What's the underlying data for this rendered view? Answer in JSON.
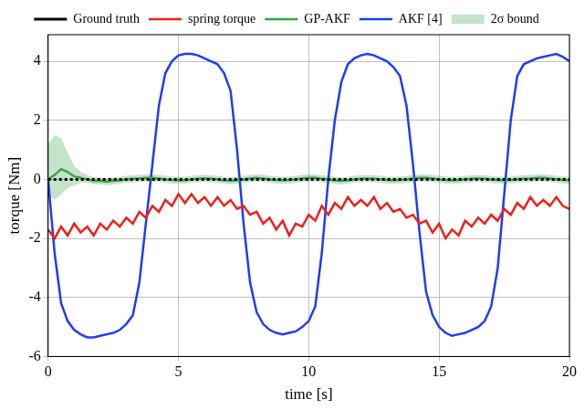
{
  "chart_data": {
    "type": "line",
    "x_label": "time [s]",
    "y_label": "torque [Nm]",
    "xlim": [
      0,
      20
    ],
    "xticks": [
      0,
      5,
      10,
      15,
      20
    ],
    "ylim": [
      -6,
      4.9
    ],
    "yticks": [
      -6,
      -4,
      -2,
      0,
      2,
      4
    ],
    "grid": true,
    "legend": "top",
    "x": [
      0,
      0.25,
      0.5,
      0.75,
      1,
      1.25,
      1.5,
      1.75,
      2,
      2.25,
      2.5,
      2.75,
      3,
      3.25,
      3.5,
      3.75,
      4,
      4.25,
      4.5,
      4.75,
      5,
      5.25,
      5.5,
      5.75,
      6,
      6.25,
      6.5,
      6.75,
      7,
      7.25,
      7.5,
      7.75,
      8,
      8.25,
      8.5,
      8.75,
      9,
      9.25,
      9.5,
      9.75,
      10,
      10.25,
      10.5,
      10.75,
      11,
      11.25,
      11.5,
      11.75,
      12,
      12.25,
      12.5,
      12.75,
      13,
      13.25,
      13.5,
      13.75,
      14,
      14.25,
      14.5,
      14.75,
      15,
      15.25,
      15.5,
      15.75,
      16,
      16.25,
      16.5,
      16.75,
      17,
      17.25,
      17.5,
      17.75,
      18,
      18.25,
      18.5,
      18.75,
      19,
      19.25,
      19.5,
      19.75,
      20
    ],
    "series": [
      {
        "name": "Ground truth",
        "color": "#000000",
        "line_style": "dotted",
        "values": [
          0,
          0,
          0,
          0,
          0,
          0,
          0,
          0,
          0,
          0,
          0,
          0,
          0,
          0,
          0,
          0,
          0,
          0,
          0,
          0,
          0,
          0,
          0,
          0,
          0,
          0,
          0,
          0,
          0,
          0,
          0,
          0,
          0,
          0,
          0,
          0,
          0,
          0,
          0,
          0,
          0,
          0,
          0,
          0,
          0,
          0,
          0,
          0,
          0,
          0,
          0,
          0,
          0,
          0,
          0,
          0,
          0,
          0,
          0,
          0,
          0,
          0,
          0,
          0,
          0,
          0,
          0,
          0,
          0,
          0,
          0,
          0,
          0,
          0,
          0,
          0,
          0,
          0,
          0,
          0,
          0
        ]
      },
      {
        "name": "spring torque",
        "color": "#e8231c",
        "line_style": "solid",
        "values": [
          -1.7,
          -2.0,
          -1.6,
          -1.9,
          -1.5,
          -1.8,
          -1.6,
          -1.9,
          -1.5,
          -1.7,
          -1.4,
          -1.6,
          -1.3,
          -1.5,
          -1.1,
          -1.3,
          -0.9,
          -1.1,
          -0.7,
          -0.9,
          -0.5,
          -0.8,
          -0.5,
          -0.8,
          -0.6,
          -0.9,
          -0.6,
          -0.9,
          -0.7,
          -1.0,
          -0.9,
          -1.2,
          -1.1,
          -1.5,
          -1.3,
          -1.7,
          -1.4,
          -1.9,
          -1.5,
          -1.6,
          -1.2,
          -1.4,
          -0.9,
          -1.2,
          -0.8,
          -1.0,
          -0.6,
          -0.9,
          -0.7,
          -0.9,
          -0.6,
          -1.0,
          -0.8,
          -1.1,
          -1.0,
          -1.3,
          -1.2,
          -1.5,
          -1.4,
          -1.8,
          -1.5,
          -2.0,
          -1.7,
          -1.9,
          -1.4,
          -1.6,
          -1.3,
          -1.5,
          -1.2,
          -1.4,
          -1.0,
          -1.2,
          -0.8,
          -1.0,
          -0.6,
          -0.9,
          -0.7,
          -0.9,
          -0.6,
          -0.9,
          -1.0
        ]
      },
      {
        "name": "GP-AKF",
        "color": "#3aa14a",
        "line_style": "solid",
        "values": [
          0,
          0.15,
          0.35,
          0.25,
          0.1,
          0.05,
          0,
          -0.05,
          -0.05,
          -0.08,
          -0.05,
          -0.03,
          0,
          0.02,
          0.03,
          0.05,
          0.05,
          0.03,
          0,
          -0.02,
          -0.03,
          -0.03,
          0,
          0.02,
          0.03,
          0.02,
          0,
          -0.03,
          -0.05,
          -0.03,
          0,
          0.03,
          0.05,
          0.03,
          0,
          -0.02,
          -0.03,
          -0.02,
          0,
          0.03,
          0.05,
          0.05,
          0.02,
          0,
          -0.03,
          -0.05,
          -0.03,
          0,
          0.02,
          0.03,
          0.02,
          0,
          -0.02,
          -0.03,
          -0.02,
          0,
          0.03,
          0.05,
          0.05,
          0.03,
          0,
          -0.02,
          -0.03,
          -0.02,
          0,
          0.02,
          0.03,
          0.02,
          0,
          -0.02,
          -0.03,
          -0.02,
          0,
          0.02,
          0.03,
          0.05,
          0.05,
          0.03,
          0,
          -0.02,
          -0.03
        ]
      },
      {
        "name": "AKF [4]",
        "color": "#1f3cf0",
        "line_style": "solid",
        "values": [
          0,
          -2.5,
          -4.2,
          -4.8,
          -5.1,
          -5.25,
          -5.35,
          -5.35,
          -5.3,
          -5.25,
          -5.2,
          -5.1,
          -4.9,
          -4.6,
          -3.5,
          -1.5,
          0.5,
          2.5,
          3.6,
          4.0,
          4.2,
          4.25,
          4.25,
          4.2,
          4.1,
          4.0,
          3.9,
          3.6,
          3.0,
          1.0,
          -1.5,
          -3.5,
          -4.5,
          -4.9,
          -5.1,
          -5.2,
          -5.25,
          -5.2,
          -5.15,
          -5.0,
          -4.8,
          -4.3,
          -2.5,
          0,
          2.0,
          3.3,
          3.9,
          4.1,
          4.2,
          4.25,
          4.2,
          4.1,
          4.0,
          3.8,
          3.5,
          2.5,
          0.5,
          -1.8,
          -3.8,
          -4.6,
          -5.0,
          -5.2,
          -5.3,
          -5.25,
          -5.2,
          -5.1,
          -5.0,
          -4.8,
          -4.3,
          -3.0,
          -0.5,
          2.0,
          3.5,
          3.9,
          4.0,
          4.1,
          4.15,
          4.2,
          4.25,
          4.15,
          4.0
        ]
      },
      {
        "name": "2σ bound",
        "color": "#3aa14a",
        "type": "band",
        "upper": [
          1.2,
          1.5,
          1.4,
          0.9,
          0.45,
          0.25,
          0.15,
          0.07,
          0.07,
          0.04,
          0.07,
          0.09,
          0.12,
          0.14,
          0.15,
          0.17,
          0.17,
          0.15,
          0.12,
          0.1,
          0.09,
          0.09,
          0.12,
          0.14,
          0.15,
          0.14,
          0.12,
          0.09,
          0.07,
          0.09,
          0.12,
          0.15,
          0.17,
          0.15,
          0.12,
          0.1,
          0.09,
          0.1,
          0.12,
          0.15,
          0.17,
          0.17,
          0.14,
          0.12,
          0.09,
          0.07,
          0.09,
          0.12,
          0.14,
          0.15,
          0.14,
          0.12,
          0.1,
          0.09,
          0.1,
          0.12,
          0.15,
          0.17,
          0.17,
          0.15,
          0.12,
          0.1,
          0.09,
          0.1,
          0.12,
          0.14,
          0.15,
          0.14,
          0.12,
          0.1,
          0.09,
          0.1,
          0.12,
          0.14,
          0.15,
          0.17,
          0.17,
          0.15,
          0.12,
          0.1,
          0.09
        ],
        "lower": [
          -0.5,
          -0.7,
          -0.5,
          -0.3,
          -0.2,
          -0.12,
          -0.12,
          -0.17,
          -0.17,
          -0.2,
          -0.17,
          -0.15,
          -0.12,
          -0.1,
          -0.09,
          -0.07,
          -0.07,
          -0.09,
          -0.12,
          -0.14,
          -0.15,
          -0.15,
          -0.12,
          -0.1,
          -0.09,
          -0.1,
          -0.12,
          -0.15,
          -0.17,
          -0.15,
          -0.12,
          -0.09,
          -0.07,
          -0.09,
          -0.12,
          -0.14,
          -0.15,
          -0.14,
          -0.12,
          -0.09,
          -0.07,
          -0.07,
          -0.1,
          -0.12,
          -0.15,
          -0.17,
          -0.15,
          -0.12,
          -0.1,
          -0.09,
          -0.1,
          -0.12,
          -0.14,
          -0.15,
          -0.14,
          -0.12,
          -0.09,
          -0.07,
          -0.07,
          -0.09,
          -0.12,
          -0.14,
          -0.15,
          -0.14,
          -0.12,
          -0.1,
          -0.09,
          -0.1,
          -0.12,
          -0.14,
          -0.15,
          -0.14,
          -0.12,
          -0.1,
          -0.09,
          -0.07,
          -0.07,
          -0.09,
          -0.12,
          -0.14,
          -0.15
        ]
      }
    ]
  }
}
